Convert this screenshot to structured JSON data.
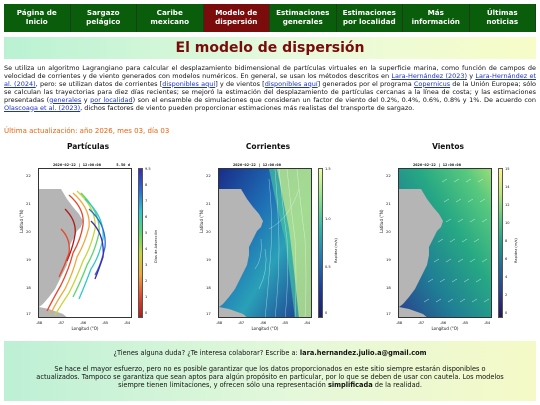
{
  "nav": {
    "items": [
      {
        "label": "Página de Inicio",
        "active": false
      },
      {
        "label": "Sargazo pelágico",
        "active": false
      },
      {
        "label": "Caribe mexicano",
        "active": false
      },
      {
        "label": "Modelo de dispersión",
        "active": true
      },
      {
        "label": "Estimaciones generales",
        "active": false
      },
      {
        "label": "Estimaciones por localidad",
        "active": false
      },
      {
        "label": "Más información",
        "active": false
      },
      {
        "label": "Últimas noticias",
        "active": false
      }
    ]
  },
  "page_title": "El modelo de dispersión",
  "paragraph": {
    "t1": "Se utiliza un algoritmo Lagrangiano para calcular el desplazamiento bidimensional de partículas virtuales en la superficie marina, como función de campos de velocidad de corrientes y de viento generados con modelos numéricos. En general, se usan los métodos descritos en ",
    "l1": "Lara-Hernández (2023)",
    "t2": " y ",
    "l2": "Lara-Hernández et al. (2024)",
    "t3": ", pero: se utilizan datos de corrientes [",
    "l3": "disponibles aquí",
    "t4": "] y de vientos [",
    "l4": "disponibles aquí",
    "t5": "] generados por el programa ",
    "l5": "Copernicus",
    "t6": " de la Unión Europea; sólo se calculan las trayectorias para diez días recientes; se mejoró la estimación del desplazamiento de partículas cercanas a la línea de costa; y las estimaciones presentadas (",
    "l6": "generales",
    "t7": " y ",
    "l7": "por localidad",
    "t8": ") son el ensamble de simulaciones que consideran un factor de viento del 0.2%, 0.4%, 0.6%, 0.8% y 1%. De acuerdo con ",
    "l8": "Olascoaga et al. (2023)",
    "t9": ", dichos factores de viento pueden proporcionar estimaciones más realistas del transporte de sargazo."
  },
  "update_text": "Última actualización: año 2026, mes 03, día 03",
  "panels": [
    {
      "label": "Partículas",
      "date": "2026-02-22 | 12:00:00",
      "extra": "5.50 d",
      "cbar_label": "Días de Advección",
      "cbar_ticks": [
        "9.5",
        "8",
        "7",
        "6",
        "5",
        "4",
        "3",
        "2",
        "1",
        "0"
      ],
      "cbar_colors": [
        "#3b2bb5",
        "#2a6bd8",
        "#2ec8d1",
        "#5bd66b",
        "#c7d63a",
        "#f0a73a",
        "#e5472b",
        "#b11a1a"
      ]
    },
    {
      "label": "Corrientes",
      "date": "2026-02-22 | 12:00:00",
      "extra": "",
      "cbar_label": "Rapidez (m/s)",
      "cbar_ticks": [
        "1.5",
        "1.0",
        "0.5",
        "0"
      ],
      "cbar_colors": [
        "#eafd9a",
        "#8be28b",
        "#2fb7a8",
        "#1e7bb8",
        "#1b3fa0",
        "#1a1e6a"
      ]
    },
    {
      "label": "Vientos",
      "date": "2026-02-22 | 12:00:00",
      "extra": "",
      "cbar_label": "Rapidez (m/s)",
      "cbar_ticks": [
        "15",
        "14",
        "12",
        "10",
        "8",
        "6",
        "4",
        "2",
        "0"
      ],
      "cbar_colors": [
        "#fbf38a",
        "#b9e57a",
        "#58c97e",
        "#1f9e8a",
        "#1f6a9b",
        "#2a3f8f",
        "#24165a"
      ]
    }
  ],
  "axes": {
    "yticks": [
      "22",
      "21",
      "20",
      "19",
      "18",
      "17"
    ],
    "xticks": [
      "-88",
      "-87",
      "-86",
      "-85",
      "-84"
    ],
    "xlabel": "Longitud (°O)",
    "ylabel": "Latitud (°N)"
  },
  "footer": {
    "question": "¿Tienes alguna duda? ¿Te interesa colaborar? Escribe a: ",
    "email": "lara.hernandez.julio.a@gmail.com",
    "disclaimer_1": "Se hace el mayor esfuerzo, pero no es posible garantizar que los datos proporcionados en este sitio siempre estarán disponibles o actualizados. Tampoco se garantiza que sean aptos para algún propósito en particular, por lo que se deben de usar con cautela. Los modelos siempre tienen limitaciones, y ofrecen sólo una representación ",
    "disclaimer_bold": "simplificada",
    "disclaimer_2": " de la realidad."
  }
}
